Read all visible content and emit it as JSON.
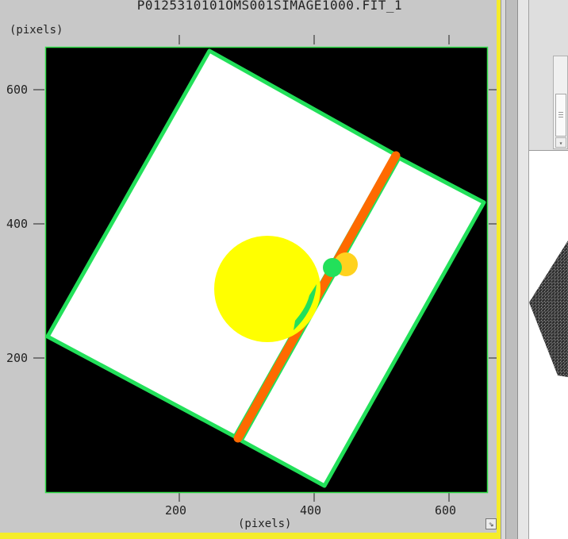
{
  "window": {
    "title": "P0125310101OMS001SIMAGE1000.FIT_1"
  },
  "plot": {
    "y_axis_label": "(pixels)",
    "x_axis_label": "(pixels)",
    "x_ticks": [
      "200",
      "400",
      "600"
    ],
    "y_ticks": [
      "600",
      "400",
      "200"
    ],
    "background_color": "#000000",
    "panel_color": "#c8c8c8",
    "frame_color": "#f5ec2a"
  },
  "regions": {
    "detector_outline_color": "#22e05a",
    "detector_fill_color": "#ffffff",
    "gap_strip_color": "#ff6a00",
    "large_circle_color": "#ffff00",
    "small_circle_color": "#ffd21e",
    "green_marker_color": "#22e05a"
  },
  "icons": {
    "resize": "resize-arrow-icon",
    "scroll_down": "chevron-down-icon"
  },
  "glyphs": {
    "resize": "⇘",
    "scroll_down": "▾"
  }
}
